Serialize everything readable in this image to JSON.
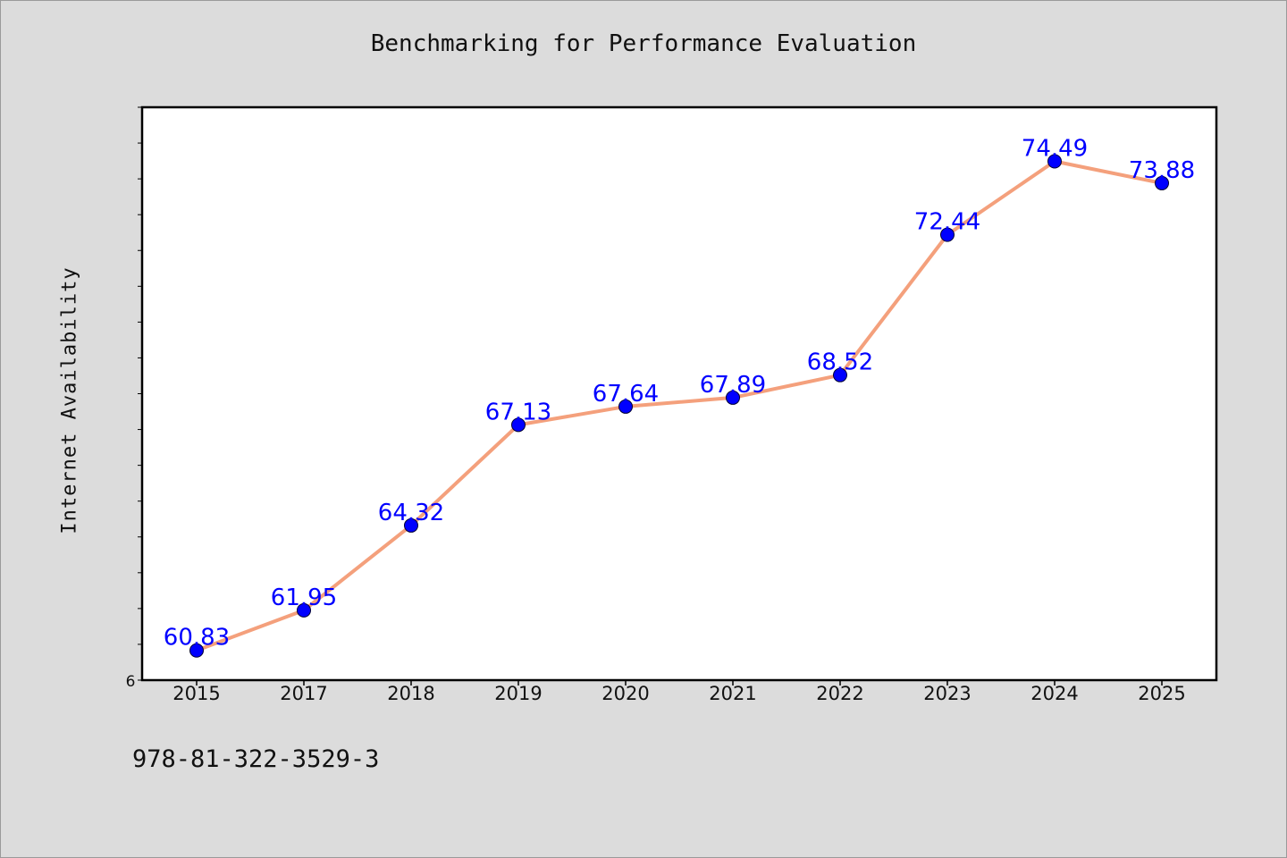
{
  "chart_data": {
    "type": "line",
    "title": "Benchmarking for Performance Evaluation",
    "xlabel": "",
    "ylabel": "Internet Availability",
    "categories": [
      "2015",
      "2017",
      "2018",
      "2019",
      "2020",
      "2021",
      "2022",
      "2023",
      "2024",
      "2025"
    ],
    "series": [
      {
        "values": [
          60.83,
          61.95,
          64.32,
          67.13,
          67.64,
          67.89,
          68.52,
          72.44,
          74.49,
          73.88
        ],
        "line_color": "#f4a07c",
        "marker_color": "#0000ff"
      }
    ],
    "data_labels": [
      "60.83",
      "61.95",
      "64.32",
      "67.13",
      "67.64",
      "67.89",
      "68.52",
      "72.44",
      "74.49",
      "73.88"
    ],
    "ylim": [
      60,
      76
    ],
    "y_tick_label": "6",
    "grid": false,
    "legend": "none",
    "label_color": "#0000ff"
  },
  "footer": {
    "isbn": "978-81-322-3529-3"
  }
}
